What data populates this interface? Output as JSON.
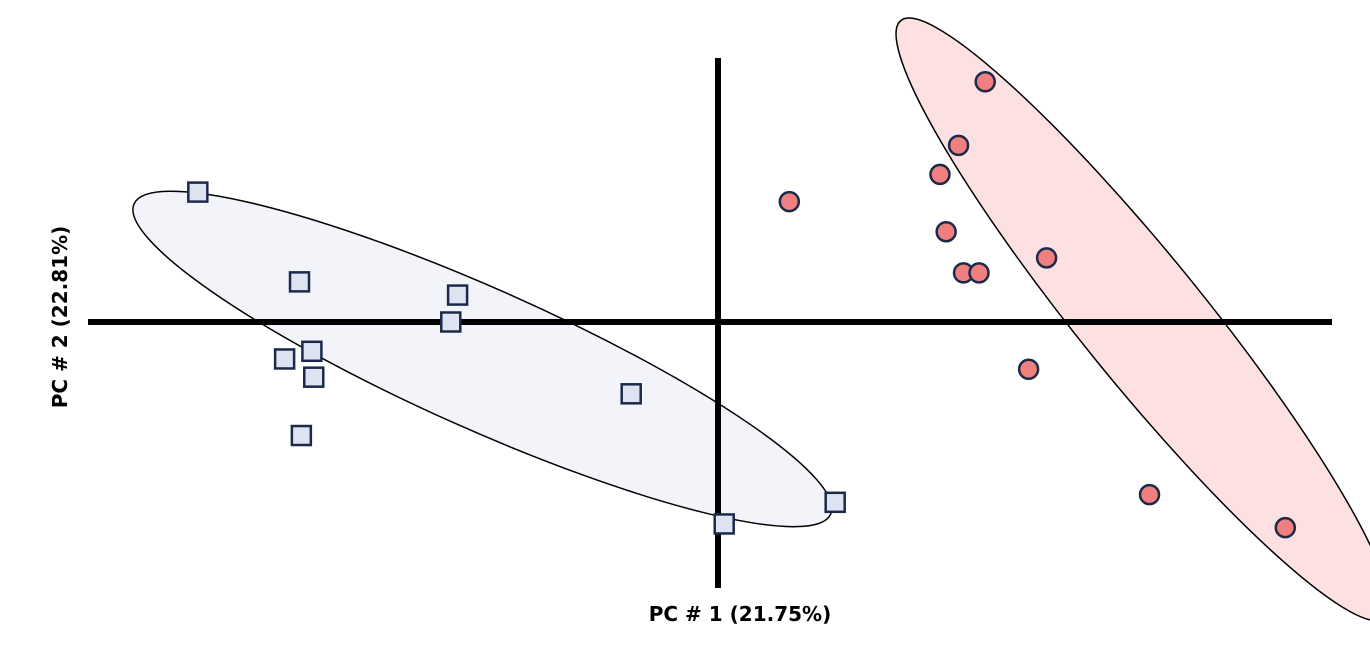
{
  "chart_data": {
    "type": "scatter",
    "xlabel": "PC # 1 (21.75%)",
    "ylabel": "PC # 2 (22.81%)",
    "xlim": [
      -1.0,
      1.0
    ],
    "ylim": [
      -1.0,
      1.0
    ],
    "grid": false,
    "legend": "none",
    "series": [
      {
        "marker": "square",
        "fill": "#dde3f0",
        "stroke": "#1c2a4a",
        "ellipse_fill": "#f2f4fa",
        "points": [
          {
            "x": -0.839,
            "y": 0.492
          },
          {
            "x": -0.675,
            "y": 0.152
          },
          {
            "x": -0.42,
            "y": 0.102
          },
          {
            "x": -0.431,
            "y": 0.0
          },
          {
            "x": -0.655,
            "y": -0.111
          },
          {
            "x": -0.699,
            "y": -0.14
          },
          {
            "x": -0.652,
            "y": -0.209
          },
          {
            "x": -0.672,
            "y": -0.43
          },
          {
            "x": -0.14,
            "y": -0.272
          },
          {
            "x": 0.189,
            "y": -0.683
          },
          {
            "x": 0.01,
            "y": -0.765
          }
        ],
        "ellipse": {
          "cx": -0.38,
          "cy": -0.14,
          "rx": 0.615,
          "ry": 0.265,
          "angle_deg": 24
        }
      },
      {
        "marker": "circle",
        "fill": "#f08080",
        "stroke": "#1c2a4a",
        "ellipse_fill": "#fde0e2",
        "points": [
          {
            "x": 0.431,
            "y": 0.91
          },
          {
            "x": 0.388,
            "y": 0.669
          },
          {
            "x": 0.358,
            "y": 0.559
          },
          {
            "x": 0.115,
            "y": 0.456
          },
          {
            "x": 0.368,
            "y": 0.342
          },
          {
            "x": 0.53,
            "y": 0.243
          },
          {
            "x": 0.396,
            "y": 0.186
          },
          {
            "x": 0.421,
            "y": 0.186
          },
          {
            "x": 0.501,
            "y": -0.179
          },
          {
            "x": 0.696,
            "y": -0.654
          },
          {
            "x": 0.915,
            "y": -0.779
          }
        ],
        "ellipse": {
          "cx": 0.685,
          "cy": 0.01,
          "rx": 0.62,
          "ry": 0.235,
          "angle_deg": 51
        }
      }
    ]
  }
}
